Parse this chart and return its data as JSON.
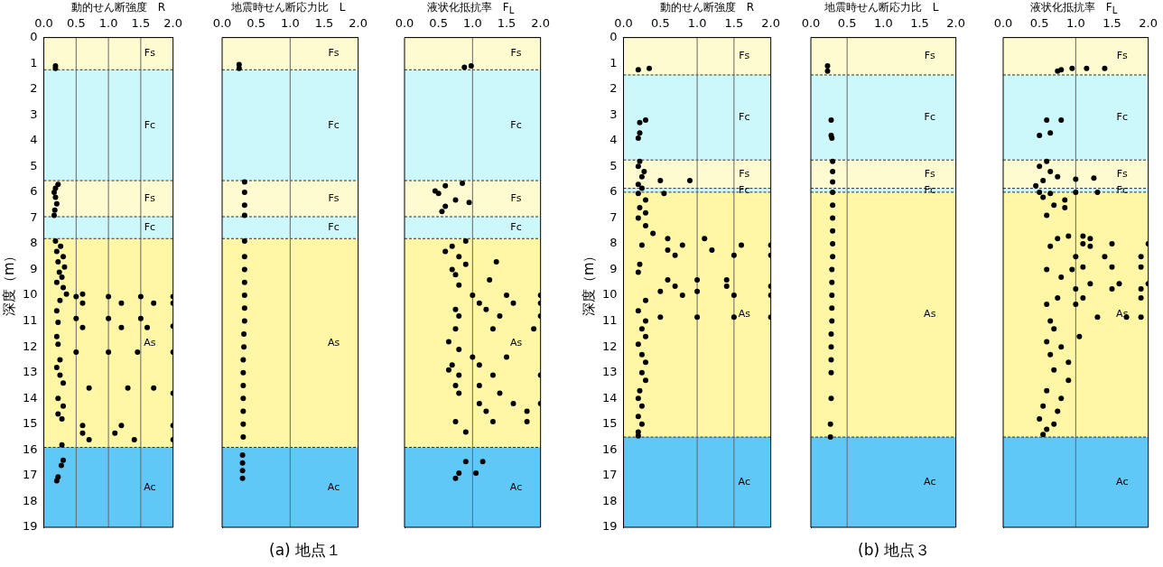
{
  "chart_data": [
    {
      "type": "scatter",
      "xlabel": "動的せん断強度　R",
      "ylabel": "深度（m）",
      "xlim": [
        0,
        2
      ],
      "xticks": [
        {
          "value": 0,
          "label": "0.0"
        },
        {
          "value": 0.5,
          "label": "0.5"
        },
        {
          "value": 1,
          "label": "1.0"
        },
        {
          "value": 1.5,
          "label": "1.5"
        },
        {
          "value": 2,
          "label": "2.0"
        }
      ],
      "ylim": [
        19,
        0
      ],
      "yticks": [
        0,
        1,
        2,
        3,
        4,
        5,
        6,
        7,
        8,
        9,
        10,
        11,
        12,
        13,
        14,
        15,
        16,
        17,
        18,
        19
      ],
      "marker": "circle",
      "ref_lines": [
        {
          "axis": "x",
          "value": 0.5,
          "color": "#666666"
        },
        {
          "axis": "x",
          "value": 1,
          "color": "#666666"
        },
        {
          "axis": "x",
          "value": 1.5,
          "color": "#666666"
        }
      ],
      "bands": [
        {
          "axis": "y",
          "from": 0,
          "to": 1.25,
          "label": "Fs",
          "color": "#fffbd0"
        },
        {
          "axis": "y",
          "from": 1.25,
          "to": 5.55,
          "label": "Fc",
          "color": "#ccf8fc"
        },
        {
          "axis": "y",
          "from": 5.55,
          "to": 6.95,
          "label": "Fs",
          "color": "#fffbd0"
        },
        {
          "axis": "y",
          "from": 6.95,
          "to": 7.8,
          "label": "Fc",
          "color": "#ccf8fc"
        },
        {
          "axis": "y",
          "from": 7.8,
          "to": 15.9,
          "label": "As",
          "color": "#fff7a6"
        },
        {
          "axis": "y",
          "from": 15.9,
          "to": 19,
          "label": "Ac",
          "color": "#5fc8f6"
        }
      ],
      "series": [
        {
          "color": "#000000",
          "x": [
            0.18,
            0.18,
            0.22,
            0.18,
            0.16,
            0.18,
            0.2,
            0.17,
            0.16,
            0.18,
            0.26,
            0.2,
            0.3,
            0.22,
            0.32,
            0.24,
            0.28,
            0.2,
            0.3,
            0.35,
            0.6,
            0.5,
            1.0,
            1.5,
            2.0,
            0.25,
            0.6,
            1.2,
            1.7,
            2.0,
            0.2,
            0.5,
            1.0,
            1.5,
            0.22,
            0.6,
            1.2,
            1.6,
            2.0,
            0.2,
            0.22,
            0.5,
            1.0,
            1.45,
            2.0,
            0.25,
            0.2,
            0.25,
            0.3,
            0.7,
            1.3,
            1.7,
            2.0,
            0.22,
            0.3,
            0.22,
            0.28,
            0.6,
            1.2,
            2.0,
            0.6,
            1.1,
            0.7,
            1.4,
            2.0,
            0.28,
            0.3,
            0.27,
            0.22,
            0.2
          ],
          "values": [
            1.1,
            1.2,
            5.7,
            5.85,
            6.0,
            6.2,
            6.45,
            6.7,
            6.9,
            7.9,
            8.1,
            8.3,
            8.5,
            8.7,
            8.9,
            9.1,
            9.3,
            9.5,
            9.7,
            9.95,
            9.95,
            10.05,
            10.05,
            10.05,
            10.05,
            10.2,
            10.3,
            10.3,
            10.3,
            10.3,
            10.6,
            10.9,
            10.9,
            10.9,
            11.05,
            11.25,
            11.25,
            11.25,
            11.2,
            11.6,
            11.9,
            12.2,
            12.2,
            12.2,
            12.2,
            12.5,
            12.8,
            13.1,
            13.4,
            13.6,
            13.6,
            13.6,
            13.8,
            14.0,
            14.3,
            14.6,
            14.8,
            15.05,
            15.05,
            15.05,
            15.35,
            15.35,
            15.6,
            15.6,
            15.6,
            15.8,
            16.4,
            16.6,
            17.05,
            17.2
          ]
        }
      ]
    },
    {
      "type": "scatter",
      "xlabel": "地震時せん断応力比　L",
      "xlim": [
        0,
        2
      ],
      "xticks": [
        {
          "value": 0,
          "label": "0.0"
        },
        {
          "value": 0.5,
          "label": "0.5"
        },
        {
          "value": 1,
          "label": "1.0"
        },
        {
          "value": 1.5,
          "label": "1.5"
        },
        {
          "value": 2,
          "label": "2.0"
        }
      ],
      "ylim": [
        19,
        0
      ],
      "yticks": [
        0,
        1,
        2,
        3,
        4,
        5,
        6,
        7,
        8,
        9,
        10,
        11,
        12,
        13,
        14,
        15,
        16,
        17,
        18,
        19
      ],
      "tick_labels": "x",
      "marker": "circle",
      "ref_lines": [
        {
          "axis": "x",
          "value": 1,
          "color": "#666666"
        }
      ],
      "bands": [
        {
          "axis": "y",
          "from": 0,
          "to": 1.25,
          "label": "Fs",
          "color": "#fffbd0"
        },
        {
          "axis": "y",
          "from": 1.25,
          "to": 5.55,
          "label": "Fc",
          "color": "#ccf8fc"
        },
        {
          "axis": "y",
          "from": 5.55,
          "to": 6.95,
          "label": "Fs",
          "color": "#fffbd0"
        },
        {
          "axis": "y",
          "from": 6.95,
          "to": 7.8,
          "label": "Fc",
          "color": "#ccf8fc"
        },
        {
          "axis": "y",
          "from": 7.8,
          "to": 15.9,
          "label": "As",
          "color": "#fff7a6"
        },
        {
          "axis": "y",
          "from": 15.9,
          "to": 19,
          "label": "Ac",
          "color": "#5fc8f6"
        }
      ],
      "annotations": [
        "(a)  地点１"
      ],
      "series": [
        {
          "color": "#000000",
          "x": [
            0.25,
            0.25,
            0.33,
            0.33,
            0.33,
            0.33,
            0.33,
            0.33,
            0.33,
            0.33,
            0.33,
            0.33,
            0.33,
            0.32,
            0.32,
            0.31,
            0.31,
            0.31,
            0.31,
            0.31,
            0.31,
            0.31,
            0.3,
            0.3,
            0.3,
            0.3
          ],
          "values": [
            1.05,
            1.2,
            5.6,
            6.0,
            6.5,
            6.9,
            7.9,
            8.5,
            9.0,
            9.5,
            10.0,
            10.5,
            11.0,
            11.5,
            12.0,
            12.5,
            13.0,
            13.5,
            14.0,
            14.5,
            15.0,
            15.5,
            16.2,
            16.5,
            16.8,
            17.1
          ]
        }
      ]
    },
    {
      "type": "scatter",
      "xlabel": "液状化抵抗率　F$_{L}$",
      "xlim": [
        0,
        2
      ],
      "xticks": [
        {
          "value": 0,
          "label": "0.0"
        },
        {
          "value": 0.5,
          "label": "0.5"
        },
        {
          "value": 1,
          "label": "1.0"
        },
        {
          "value": 1.5,
          "label": "1.5"
        },
        {
          "value": 2,
          "label": "2.0"
        }
      ],
      "ylim": [
        19,
        0
      ],
      "yticks": [
        0,
        1,
        2,
        3,
        4,
        5,
        6,
        7,
        8,
        9,
        10,
        11,
        12,
        13,
        14,
        15,
        16,
        17,
        18,
        19
      ],
      "tick_labels": "x",
      "marker": "circle",
      "ref_lines": [
        {
          "axis": "x",
          "value": 1,
          "color": "#666666"
        }
      ],
      "bands": [
        {
          "axis": "y",
          "from": 0,
          "to": 1.25,
          "label": "Fs",
          "color": "#fffbd0"
        },
        {
          "axis": "y",
          "from": 1.25,
          "to": 5.55,
          "label": "Fc",
          "color": "#ccf8fc"
        },
        {
          "axis": "y",
          "from": 5.55,
          "to": 6.95,
          "label": "Fs",
          "color": "#fffbd0"
        },
        {
          "axis": "y",
          "from": 6.95,
          "to": 7.8,
          "label": "Fc",
          "color": "#ccf8fc"
        },
        {
          "axis": "y",
          "from": 7.8,
          "to": 15.9,
          "label": "As",
          "color": "#fff7a6"
        },
        {
          "axis": "y",
          "from": 15.9,
          "to": 19,
          "label": "Ac",
          "color": "#5fc8f6"
        }
      ],
      "series": [
        {
          "color": "#000000",
          "x": [
            0.88,
            0.98,
            0.85,
            0.6,
            0.45,
            0.5,
            0.75,
            0.95,
            0.6,
            0.55,
            0.9,
            0.7,
            0.6,
            0.8,
            1.35,
            0.9,
            0.7,
            0.75,
            1.25,
            0.8,
            1.0,
            1.5,
            2.0,
            1.1,
            1.6,
            2.0,
            0.75,
            1.2,
            0.8,
            1.4,
            2.0,
            0.75,
            1.3,
            1.9,
            0.65,
            0.8,
            1.0,
            1.5,
            0.7,
            1.1,
            0.65,
            0.8,
            1.3,
            2.0,
            0.75,
            1.1,
            0.8,
            1.4,
            1.1,
            1.6,
            2.0,
            1.2,
            1.8,
            0.75,
            1.3,
            1.8,
            0.9,
            0.9,
            1.15,
            0.8,
            1.05,
            0.75
          ],
          "values": [
            1.15,
            1.1,
            5.65,
            5.75,
            5.95,
            6.05,
            6.3,
            6.4,
            6.55,
            6.75,
            7.9,
            8.1,
            8.3,
            8.5,
            8.7,
            8.8,
            9.0,
            9.2,
            9.4,
            9.6,
            10.0,
            10.0,
            10.0,
            10.3,
            10.3,
            10.3,
            10.55,
            10.55,
            10.8,
            10.8,
            10.8,
            11.3,
            11.3,
            11.3,
            11.8,
            12.1,
            12.4,
            12.4,
            12.7,
            12.7,
            12.9,
            13.1,
            13.1,
            13.1,
            13.5,
            13.5,
            13.8,
            13.8,
            14.2,
            14.2,
            14.2,
            14.5,
            14.5,
            14.9,
            14.9,
            14.9,
            15.3,
            16.45,
            16.45,
            16.9,
            16.9,
            17.1
          ]
        }
      ]
    },
    {
      "type": "scatter",
      "xlabel": "動的せん断強度　R",
      "ylabel": "深度（m）",
      "xlim": [
        0,
        2
      ],
      "xticks": [
        {
          "value": 0,
          "label": "0.0"
        },
        {
          "value": 0.5,
          "label": "0.5"
        },
        {
          "value": 1,
          "label": "1.0"
        },
        {
          "value": 1.5,
          "label": "1.5"
        },
        {
          "value": 2,
          "label": "2.0"
        }
      ],
      "ylim": [
        19,
        0
      ],
      "yticks": [
        0,
        1,
        2,
        3,
        4,
        5,
        6,
        7,
        8,
        9,
        10,
        11,
        12,
        13,
        14,
        15,
        16,
        17,
        18,
        19
      ],
      "marker": "circle",
      "ref_lines": [
        {
          "axis": "x",
          "value": 1,
          "color": "#666666"
        },
        {
          "axis": "x",
          "value": 1.5,
          "color": "#666666"
        }
      ],
      "bands": [
        {
          "axis": "y",
          "from": 0,
          "to": 1.45,
          "label": "Fs",
          "color": "#fffbd0"
        },
        {
          "axis": "y",
          "from": 1.45,
          "to": 4.75,
          "label": "Fc",
          "color": "#ccf8fc"
        },
        {
          "axis": "y",
          "from": 4.75,
          "to": 5.85,
          "label": "Fs",
          "color": "#fffbd0"
        },
        {
          "axis": "y",
          "from": 5.85,
          "to": 6.0,
          "label": "Fc",
          "color": "#ccf8fc"
        },
        {
          "axis": "y",
          "from": 6.0,
          "to": 15.5,
          "label": "As",
          "color": "#fff7a6"
        },
        {
          "axis": "y",
          "from": 15.5,
          "to": 19,
          "label": "Ac",
          "color": "#5fc8f6"
        }
      ],
      "series": [
        {
          "color": "#000000",
          "x": [
            0.2,
            0.35,
            0.3,
            0.22,
            0.22,
            0.2,
            0.22,
            0.2,
            0.28,
            0.25,
            0.5,
            0.9,
            0.2,
            0.25,
            0.2,
            0.55,
            0.3,
            0.22,
            0.3,
            0.2,
            0.3,
            0.4,
            0.6,
            1.1,
            0.25,
            0.8,
            1.6,
            2.0,
            0.6,
            1.2,
            0.7,
            1.5,
            2.0,
            0.22,
            0.2,
            0.6,
            1.0,
            1.4,
            0.7,
            1.4,
            2.0,
            0.5,
            1.0,
            0.8,
            1.5,
            2.0,
            0.3,
            0.2,
            0.5,
            1.0,
            1.5,
            2.0,
            0.3,
            0.25,
            0.3,
            0.2,
            0.25,
            0.3,
            0.25,
            0.3,
            0.22,
            0.2,
            0.25,
            0.2,
            0.25,
            0.2,
            0.2
          ],
          "values": [
            1.25,
            1.2,
            3.2,
            3.3,
            3.7,
            3.9,
            4.8,
            5.0,
            5.2,
            5.4,
            5.55,
            5.55,
            5.7,
            5.85,
            6.05,
            6.05,
            6.3,
            6.6,
            6.8,
            7.0,
            7.3,
            7.6,
            7.8,
            7.8,
            8.05,
            8.05,
            8.05,
            8.05,
            8.25,
            8.25,
            8.45,
            8.45,
            8.45,
            8.8,
            9.1,
            9.4,
            9.4,
            9.4,
            9.65,
            9.65,
            9.65,
            9.85,
            9.85,
            10.0,
            10.0,
            10.0,
            10.2,
            10.6,
            10.85,
            10.85,
            10.85,
            10.85,
            11.0,
            11.3,
            11.6,
            11.9,
            12.3,
            12.6,
            13.0,
            13.3,
            13.7,
            14.0,
            14.3,
            14.7,
            15.0,
            15.3,
            15.45
          ]
        }
      ]
    },
    {
      "type": "scatter",
      "xlabel": "地震時せん断応力比　L",
      "xlim": [
        0,
        2
      ],
      "xticks": [
        {
          "value": 0,
          "label": "0.0"
        },
        {
          "value": 0.5,
          "label": "0.5"
        },
        {
          "value": 1,
          "label": "1.0"
        },
        {
          "value": 1.5,
          "label": "1.5"
        },
        {
          "value": 2,
          "label": "2.0"
        }
      ],
      "ylim": [
        19,
        0
      ],
      "yticks": [
        0,
        1,
        2,
        3,
        4,
        5,
        6,
        7,
        8,
        9,
        10,
        11,
        12,
        13,
        14,
        15,
        16,
        17,
        18,
        19
      ],
      "tick_labels": "x",
      "marker": "circle",
      "ref_lines": [
        {
          "axis": "x",
          "value": 0.5,
          "color": "#666666"
        }
      ],
      "bands": [
        {
          "axis": "y",
          "from": 0,
          "to": 1.45,
          "label": "Fs",
          "color": "#fffbd0"
        },
        {
          "axis": "y",
          "from": 1.45,
          "to": 4.75,
          "label": "Fc",
          "color": "#ccf8fc"
        },
        {
          "axis": "y",
          "from": 4.75,
          "to": 5.85,
          "label": "Fs",
          "color": "#fffbd0"
        },
        {
          "axis": "y",
          "from": 5.85,
          "to": 6.0,
          "label": "Fc",
          "color": "#ccf8fc"
        },
        {
          "axis": "y",
          "from": 6.0,
          "to": 15.5,
          "label": "As",
          "color": "#fff7a6"
        },
        {
          "axis": "y",
          "from": 15.5,
          "to": 19,
          "label": "Ac",
          "color": "#5fc8f6"
        }
      ],
      "annotations": [
        "(b) 地点３"
      ],
      "series": [
        {
          "color": "#000000",
          "x": [
            0.23,
            0.23,
            0.28,
            0.28,
            0.29,
            0.3,
            0.3,
            0.3,
            0.3,
            0.3,
            0.3,
            0.3,
            0.3,
            0.3,
            0.29,
            0.29,
            0.29,
            0.29,
            0.29,
            0.28,
            0.28,
            0.28,
            0.28,
            0.28,
            0.27,
            0.27
          ],
          "values": [
            1.1,
            1.3,
            3.2,
            3.8,
            3.9,
            4.8,
            5.2,
            5.6,
            6.0,
            6.5,
            7.0,
            7.5,
            8.0,
            8.5,
            9.0,
            9.5,
            10.0,
            10.5,
            11.0,
            11.5,
            12.0,
            12.5,
            13.0,
            14.0,
            15.0,
            15.5
          ]
        }
      ]
    },
    {
      "type": "scatter",
      "xlabel": "液状化抵抗率　F$_{L}$",
      "xlim": [
        0,
        2
      ],
      "xticks": [
        {
          "value": 0,
          "label": "0.0"
        },
        {
          "value": 0.5,
          "label": "0.5"
        },
        {
          "value": 1,
          "label": "1.0"
        },
        {
          "value": 1.5,
          "label": "1.5"
        },
        {
          "value": 2,
          "label": "2.0"
        }
      ],
      "ylim": [
        19,
        0
      ],
      "yticks": [
        0,
        1,
        2,
        3,
        4,
        5,
        6,
        7,
        8,
        9,
        10,
        11,
        12,
        13,
        14,
        15,
        16,
        17,
        18,
        19
      ],
      "tick_labels": "x",
      "marker": "circle",
      "ref_lines": [
        {
          "axis": "x",
          "value": 1,
          "color": "#666666"
        }
      ],
      "bands": [
        {
          "axis": "y",
          "from": 0,
          "to": 1.45,
          "label": "Fs",
          "color": "#fffbd0"
        },
        {
          "axis": "y",
          "from": 1.45,
          "to": 4.75,
          "label": "Fc",
          "color": "#ccf8fc"
        },
        {
          "axis": "y",
          "from": 4.75,
          "to": 5.85,
          "label": "Fs",
          "color": "#fffbd0"
        },
        {
          "axis": "y",
          "from": 5.85,
          "to": 6.0,
          "label": "Fc",
          "color": "#ccf8fc"
        },
        {
          "axis": "y",
          "from": 6.0,
          "to": 15.5,
          "label": "As",
          "color": "#fff7a6"
        },
        {
          "axis": "y",
          "from": 15.5,
          "to": 19,
          "label": "Ac",
          "color": "#5fc8f6"
        }
      ],
      "series": [
        {
          "color": "#000000",
          "x": [
            0.75,
            0.8,
            0.95,
            1.15,
            1.4,
            0.6,
            0.8,
            0.5,
            0.65,
            0.6,
            0.5,
            0.65,
            0.75,
            0.55,
            1.0,
            1.25,
            0.45,
            0.5,
            0.65,
            1.0,
            1.3,
            0.55,
            0.85,
            0.7,
            0.85,
            0.6,
            0.9,
            1.1,
            0.75,
            1.2,
            1.1,
            1.5,
            2.0,
            0.65,
            1.2,
            1.0,
            1.4,
            1.9,
            1.1,
            1.5,
            1.9,
            0.6,
            0.95,
            0.8,
            1.2,
            1.6,
            2.0,
            1.0,
            1.5,
            1.9,
            0.75,
            1.1,
            1.9,
            0.6,
            1.0,
            1.3,
            1.7,
            1.9,
            0.65,
            0.7,
            1.05,
            0.6,
            0.8,
            0.65,
            0.9,
            0.7,
            0.9,
            0.6,
            0.8,
            0.55,
            0.75,
            0.5,
            0.7,
            0.6,
            0.55
          ],
          "values": [
            1.3,
            1.25,
            1.2,
            1.2,
            1.2,
            3.2,
            3.2,
            3.8,
            3.7,
            4.8,
            5.0,
            5.2,
            5.4,
            5.55,
            5.5,
            5.45,
            5.75,
            6.0,
            6.05,
            6.0,
            6.0,
            6.2,
            6.3,
            6.5,
            6.6,
            6.9,
            7.7,
            7.7,
            7.8,
            7.8,
            8.0,
            8.0,
            8.0,
            8.1,
            8.1,
            8.5,
            8.5,
            8.5,
            8.9,
            8.9,
            8.9,
            9.0,
            9.0,
            9.3,
            9.55,
            9.55,
            9.55,
            9.75,
            9.75,
            9.75,
            10.1,
            10.1,
            10.1,
            10.35,
            10.35,
            10.85,
            10.85,
            10.85,
            11.0,
            11.3,
            11.6,
            11.8,
            12.0,
            12.3,
            12.6,
            12.9,
            13.3,
            13.7,
            14.0,
            14.3,
            14.5,
            14.8,
            15.0,
            15.2,
            15.4
          ]
        }
      ]
    }
  ]
}
